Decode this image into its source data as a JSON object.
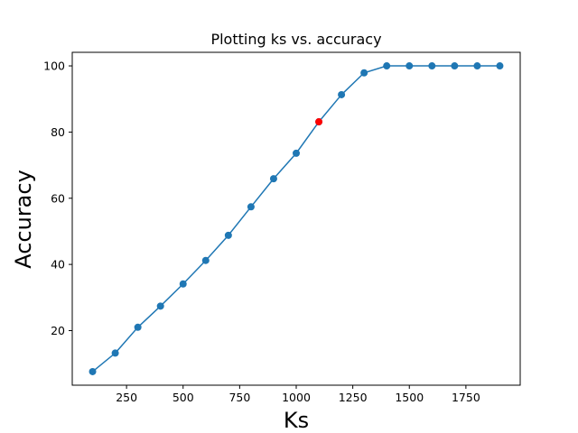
{
  "chart_data": {
    "type": "line",
    "title": "Plotting ks vs. accuracy",
    "xlabel": "Ks",
    "ylabel": "Accuracy",
    "xlim": [
      10,
      1990
    ],
    "ylim": [
      3.5,
      104.1
    ],
    "xticks": [
      250,
      500,
      750,
      1000,
      1250,
      1500,
      1750
    ],
    "yticks": [
      20,
      40,
      60,
      80,
      100
    ],
    "grid": false,
    "series": [
      {
        "color": "#1f77b4",
        "marker": "circle",
        "x": [
          100,
          200,
          300,
          400,
          500,
          600,
          700,
          800,
          900,
          1000,
          1100,
          1200,
          1300,
          1400,
          1500,
          1600,
          1700,
          1800,
          1900
        ],
        "y": [
          7.6,
          13.2,
          21.0,
          27.4,
          34.1,
          41.2,
          48.8,
          57.4,
          65.9,
          73.6,
          83.1,
          91.3,
          97.9,
          100,
          100,
          100,
          100,
          100,
          100
        ]
      }
    ],
    "highlight": {
      "x": 1100,
      "y": 83.1,
      "color": "#ff0000"
    }
  }
}
